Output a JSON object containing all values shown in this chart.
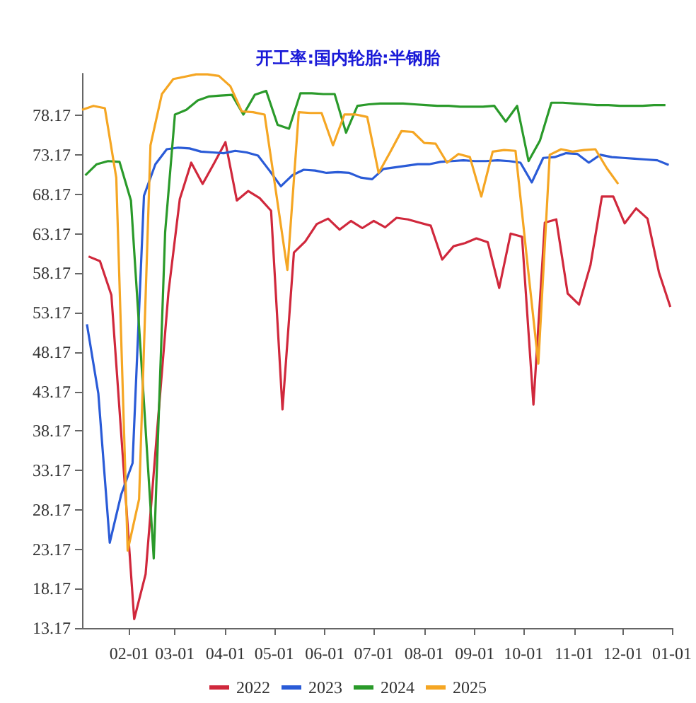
{
  "chart_data": {
    "type": "line",
    "title": "开工率:国内轮胎:半钢胎",
    "xlim": [
      "--01-03",
      "--12-31"
    ],
    "xticks": [
      {
        "value": "--02-01",
        "label": "02-01"
      },
      {
        "value": "--03-01",
        "label": "03-01"
      },
      {
        "value": "--04-01",
        "label": "04-01"
      },
      {
        "value": "--05-01",
        "label": "05-01"
      },
      {
        "value": "--06-01",
        "label": "06-01"
      },
      {
        "value": "--07-01",
        "label": "07-01"
      },
      {
        "value": "--08-01",
        "label": "08-01"
      },
      {
        "value": "--09-01",
        "label": "09-01"
      },
      {
        "value": "--10-01",
        "label": "10-01"
      },
      {
        "value": "--11-01",
        "label": "11-01"
      },
      {
        "value": "--12-01",
        "label": "12-01"
      },
      {
        "value": "--12-31",
        "label": "01-01"
      }
    ],
    "ylim": [
      13.17,
      83.5
    ],
    "yticks": [
      13.17,
      18.17,
      23.17,
      28.17,
      33.17,
      38.17,
      43.17,
      48.17,
      53.17,
      58.17,
      63.17,
      68.17,
      73.17,
      78.17
    ],
    "grid": false,
    "legend": "bottom",
    "marker": "none",
    "line_style": "solid",
    "series": [
      {
        "name": "2022",
        "color": "#d0283c",
        "x": [
          "--01-07",
          "--01-14",
          "--01-21",
          "--01-28",
          "--02-04",
          "--02-11",
          "--02-18",
          "--02-25",
          "--03-04",
          "--03-11",
          "--03-18",
          "--03-25",
          "--04-01",
          "--04-08",
          "--04-15",
          "--04-22",
          "--04-29",
          "--05-06",
          "--05-13",
          "--05-20",
          "--05-27",
          "--06-03",
          "--06-10",
          "--06-17",
          "--06-24",
          "--07-01",
          "--07-08",
          "--07-15",
          "--07-22",
          "--07-29",
          "--08-05",
          "--08-12",
          "--08-19",
          "--08-26",
          "--09-02",
          "--09-09",
          "--09-16",
          "--09-23",
          "--09-30",
          "--10-07",
          "--10-14",
          "--10-21",
          "--10-28",
          "--11-04",
          "--11-11",
          "--11-18",
          "--11-25",
          "--12-02",
          "--12-09",
          "--12-16",
          "--12-23",
          "--12-30"
        ],
        "values": [
          60.3,
          59.7,
          55.4,
          35,
          14.3,
          20.0,
          38,
          55.7,
          67.6,
          72.2,
          69.5,
          72.1,
          74.8,
          67.4,
          68.6,
          67.7,
          66.1,
          40.9,
          60.8,
          62.2,
          64.4,
          65.1,
          63.7,
          64.8,
          63.9,
          64.8,
          64.0,
          65.2,
          65.0,
          64.6,
          64.2,
          59.9,
          61.6,
          62.0,
          62.6,
          62.1,
          56.3,
          63.2,
          62.8,
          41.5,
          64.6,
          65.0,
          55.6,
          54.2,
          59.2,
          67.9,
          67.9,
          64.5,
          66.4,
          65.1,
          58.3,
          53.9
        ]
      },
      {
        "name": "2023",
        "color": "#2a5bd7",
        "x": [
          "--01-06",
          "--01-13",
          "--01-20",
          "--01-27",
          "--02-03",
          "--02-10",
          "--02-17",
          "--02-24",
          "--03-03",
          "--03-10",
          "--03-17",
          "--03-24",
          "--03-31",
          "--04-07",
          "--04-14",
          "--04-21",
          "--04-28",
          "--05-05",
          "--05-12",
          "--05-19",
          "--05-26",
          "--06-02",
          "--06-09",
          "--06-16",
          "--06-23",
          "--06-30",
          "--07-07",
          "--07-14",
          "--07-21",
          "--07-28",
          "--08-04",
          "--08-11",
          "--08-18",
          "--08-25",
          "--09-01",
          "--09-08",
          "--09-15",
          "--09-22",
          "--09-29",
          "--10-06",
          "--10-13",
          "--10-20",
          "--10-27",
          "--11-03",
          "--11-10",
          "--11-17",
          "--11-24",
          "--12-01",
          "--12-08",
          "--12-15",
          "--12-22",
          "--12-29"
        ],
        "values": [
          51.7,
          42.9,
          24.0,
          30.1,
          34.1,
          68.0,
          72.0,
          73.9,
          74.1,
          74.0,
          73.6,
          73.5,
          73.4,
          73.7,
          73.5,
          73.1,
          71.2,
          69.2,
          70.6,
          71.3,
          71.2,
          70.9,
          71.0,
          70.9,
          70.3,
          70.1,
          71.4,
          71.6,
          71.8,
          72.0,
          72.0,
          72.3,
          72.4,
          72.5,
          72.4,
          72.4,
          72.5,
          72.4,
          72.2,
          69.7,
          72.8,
          72.9,
          73.4,
          73.3,
          72.2,
          73.2,
          72.9,
          72.8,
          72.7,
          72.6,
          72.5,
          71.9
        ]
      },
      {
        "name": "2024",
        "color": "#2a9a2a",
        "x": [
          "--01-05",
          "--01-12",
          "--01-19",
          "--01-26",
          "--02-02",
          "--02-09",
          "--02-16",
          "--02-23",
          "--03-01",
          "--03-08",
          "--03-15",
          "--03-22",
          "--03-29",
          "--04-05",
          "--04-12",
          "--04-19",
          "--04-26",
          "--05-03",
          "--05-10",
          "--05-17",
          "--05-24",
          "--05-31",
          "--06-07",
          "--06-14",
          "--06-21",
          "--06-28",
          "--07-05",
          "--07-12",
          "--07-19",
          "--07-26",
          "--08-02",
          "--08-09",
          "--08-16",
          "--08-23",
          "--08-30",
          "--09-06",
          "--09-13",
          "--09-20",
          "--09-27",
          "--10-04",
          "--10-11",
          "--10-18",
          "--10-25",
          "--11-01",
          "--11-08",
          "--11-15",
          "--11-22",
          "--11-29",
          "--12-06",
          "--12-13",
          "--12-20",
          "--12-27"
        ],
        "values": [
          70.6,
          72.0,
          72.4,
          72.3,
          67.4,
          45,
          22.0,
          63.4,
          78.3,
          78.9,
          80.1,
          80.6,
          80.7,
          80.8,
          78.3,
          80.8,
          81.3,
          77.0,
          76.5,
          81.0,
          81.0,
          80.9,
          80.9,
          76.0,
          79.4,
          79.6,
          79.7,
          79.7,
          79.7,
          79.6,
          79.5,
          79.4,
          79.4,
          79.3,
          79.3,
          79.3,
          79.4,
          77.4,
          79.4,
          72.4,
          75.0,
          79.8,
          79.8,
          79.7,
          79.6,
          79.5,
          79.5,
          79.4,
          79.4,
          79.4,
          79.5,
          79.5
        ]
      },
      {
        "name": "2025",
        "color": "#f5a623",
        "x": [
          "--01-03",
          "--01-10",
          "--01-17",
          "--01-24",
          "--01-31",
          "--02-07",
          "--02-14",
          "--02-21",
          "--02-28",
          "--03-07",
          "--03-14",
          "--03-21",
          "--03-28",
          "--04-04",
          "--04-11",
          "--04-18",
          "--04-25",
          "--05-02",
          "--05-09",
          "--05-16",
          "--05-23",
          "--05-30",
          "--06-06",
          "--06-13",
          "--06-20",
          "--06-27",
          "--07-04",
          "--07-11",
          "--07-18",
          "--07-25",
          "--08-01",
          "--08-08",
          "--08-15",
          "--08-22",
          "--08-29",
          "--09-05",
          "--09-12",
          "--09-19",
          "--09-26",
          "--10-03",
          "--10-10",
          "--10-17",
          "--10-24",
          "--10-31",
          "--11-07",
          "--11-14",
          "--11-21",
          "--11-28"
        ],
        "values": [
          78.9,
          79.4,
          79.1,
          70.3,
          23.0,
          29.5,
          74.4,
          80.9,
          82.8,
          83.1,
          83.4,
          83.4,
          83.2,
          81.9,
          78.7,
          78.6,
          78.3,
          68.5,
          58.6,
          78.6,
          78.5,
          78.5,
          74.4,
          78.3,
          78.3,
          78.0,
          70.9,
          73.5,
          76.2,
          76.1,
          74.7,
          74.6,
          72.2,
          73.3,
          72.9,
          67.9,
          73.6,
          73.8,
          73.7,
          60,
          46.7,
          73.2,
          73.9,
          73.6,
          73.8,
          73.9,
          71.5,
          69.5
        ]
      }
    ]
  }
}
